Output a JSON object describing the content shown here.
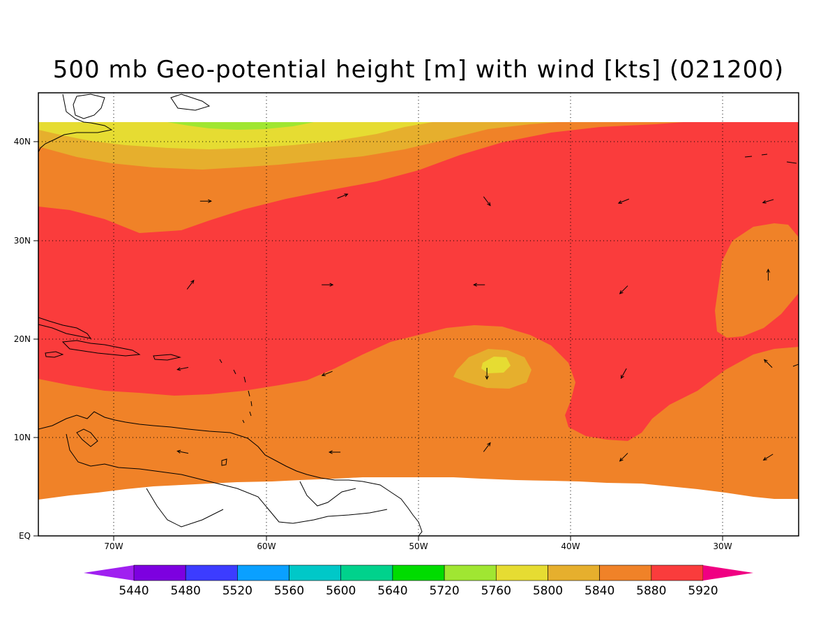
{
  "title": "500 mb Geo-potential height [m] with wind [kts] (021200)",
  "axes": {
    "x_ticks": [
      "70W",
      "60W",
      "50W",
      "40W",
      "30W"
    ],
    "y_ticks": [
      "EQ",
      "10N",
      "20N",
      "30N",
      "40N"
    ],
    "lon_range": [
      -75,
      -25
    ],
    "lat_range": [
      0,
      45
    ]
  },
  "colorbar": {
    "labels": [
      "5440",
      "5480",
      "5520",
      "5560",
      "5600",
      "5640",
      "5720",
      "5760",
      "5800",
      "5840",
      "5880",
      "5920"
    ],
    "colors": [
      "#a020f0",
      "#7d00e0",
      "#3c3cff",
      "#0aa0ff",
      "#00c8c8",
      "#00d28c",
      "#00dc00",
      "#a0e632",
      "#e6dc32",
      "#e6af2d",
      "#f08228",
      "#fa3c3c",
      "#f00082"
    ]
  },
  "fills": {
    "ocean_default": "#f08228",
    "high": "#fa3c3c",
    "band_5840": "#e6af2d",
    "band_5800": "#e6dc32",
    "band_5760": "#a0e632"
  },
  "wind_vectors": [
    {
      "lon": -64,
      "lat": 34,
      "u": 1,
      "v": 0
    },
    {
      "lon": -55,
      "lat": 34.5,
      "u": 1,
      "v": 0.4
    },
    {
      "lon": -45.5,
      "lat": 34,
      "u": 0.6,
      "v": -0.8
    },
    {
      "lon": -36.5,
      "lat": 34,
      "u": -1,
      "v": -0.4
    },
    {
      "lon": -27,
      "lat": 34,
      "u": -1,
      "v": -0.3
    },
    {
      "lon": -65,
      "lat": 25.5,
      "u": 0.6,
      "v": 0.8
    },
    {
      "lon": -56,
      "lat": 25.5,
      "u": 1,
      "v": 0
    },
    {
      "lon": -46,
      "lat": 25.5,
      "u": -1,
      "v": 0
    },
    {
      "lon": -36.5,
      "lat": 25,
      "u": -0.7,
      "v": -0.7
    },
    {
      "lon": -27,
      "lat": 26.5,
      "u": 0,
      "v": 1
    },
    {
      "lon": -65.5,
      "lat": 17,
      "u": -1,
      "v": -0.2
    },
    {
      "lon": -56,
      "lat": 16.5,
      "u": -1,
      "v": -0.4
    },
    {
      "lon": -45.5,
      "lat": 16.5,
      "u": 0,
      "v": -1
    },
    {
      "lon": -36.5,
      "lat": 16.5,
      "u": -0.5,
      "v": -0.9
    },
    {
      "lon": -27,
      "lat": 17.5,
      "u": -0.7,
      "v": 0.7
    },
    {
      "lon": -65.5,
      "lat": 8.5,
      "u": -1,
      "v": 0.2
    },
    {
      "lon": -55.5,
      "lat": 8.5,
      "u": -1,
      "v": 0
    },
    {
      "lon": -45.5,
      "lat": 9,
      "u": 0.6,
      "v": 0.8
    },
    {
      "lon": -36.5,
      "lat": 8,
      "u": -0.7,
      "v": -0.7
    },
    {
      "lon": -27,
      "lat": 8,
      "u": -0.8,
      "v": -0.5
    }
  ]
}
